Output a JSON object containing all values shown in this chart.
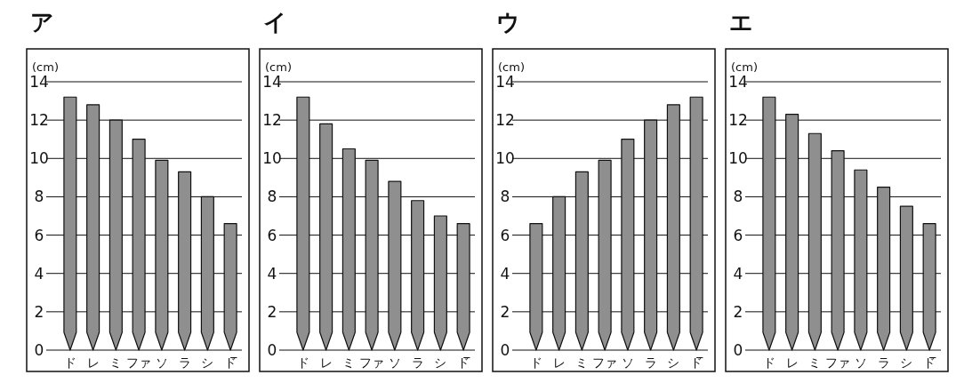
{
  "chart_data": [
    {
      "type": "bar",
      "title": "ア",
      "ylabel": "(cm)",
      "categories": [
        "ド",
        "レ",
        "ミ",
        "ファ",
        "ソ",
        "ラ",
        "シ",
        "ド̅"
      ],
      "values": [
        13.2,
        12.8,
        12,
        11,
        9.9,
        9.3,
        8,
        6.6
      ],
      "color": "#8f8f8f",
      "ylim": [
        0,
        14
      ],
      "yticks": [
        0,
        2,
        4,
        6,
        8,
        10,
        12,
        14
      ],
      "grid": "y"
    },
    {
      "type": "bar",
      "title": "イ",
      "ylabel": "(cm)",
      "categories": [
        "ド",
        "レ",
        "ミ",
        "ファ",
        "ソ",
        "ラ",
        "シ",
        "ド̅"
      ],
      "values": [
        13.2,
        11.8,
        10.5,
        9.9,
        8.8,
        7.8,
        7,
        6.6
      ],
      "color": "#8f8f8f",
      "ylim": [
        0,
        14
      ],
      "yticks": [
        0,
        2,
        4,
        6,
        8,
        10,
        12,
        14
      ],
      "grid": "y"
    },
    {
      "type": "bar",
      "title": "ウ",
      "ylabel": "(cm)",
      "categories": [
        "ド",
        "レ",
        "ミ",
        "ファ",
        "ソ",
        "ラ",
        "シ",
        "ド̅"
      ],
      "values": [
        6.6,
        8,
        9.3,
        9.9,
        11,
        12,
        12.8,
        13.2
      ],
      "color": "#8f8f8f",
      "ylim": [
        0,
        14
      ],
      "yticks": [
        0,
        2,
        4,
        6,
        8,
        10,
        12,
        14
      ],
      "grid": "y"
    },
    {
      "type": "bar",
      "title": "エ",
      "ylabel": "(cm)",
      "categories": [
        "ド",
        "レ",
        "ミ",
        "ファ",
        "ソ",
        "ラ",
        "シ",
        "ド̅"
      ],
      "values": [
        13.2,
        12.3,
        11.3,
        10.4,
        9.4,
        8.5,
        7.5,
        6.6
      ],
      "color": "#8f8f8f",
      "ylim": [
        0,
        14
      ],
      "yticks": [
        0,
        2,
        4,
        6,
        8,
        10,
        12,
        14
      ],
      "grid": "y"
    }
  ]
}
